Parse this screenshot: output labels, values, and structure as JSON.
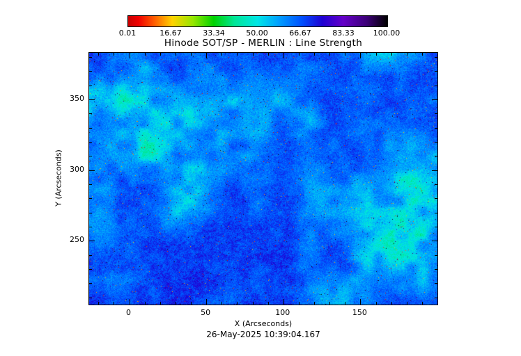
{
  "chart_data": {
    "type": "heatmap",
    "title": "Hinode SOT/SP - MERLIN : Line Strength",
    "xlabel": "X (Arcseconds)",
    "ylabel": "Y (Arcseconds)",
    "xlim": [
      -26,
      200
    ],
    "ylim": [
      205,
      383
    ],
    "xticks": [
      0,
      50,
      100,
      150
    ],
    "yticks": [
      250,
      300,
      350
    ],
    "x_minor_step": 10,
    "y_minor_step": 10,
    "grid": false,
    "colorbar": {
      "range": [
        0.01,
        100.0
      ],
      "tick_labels": [
        "0.01",
        "16.67",
        "33.34",
        "50.00",
        "66.67",
        "83.33",
        "100.00"
      ],
      "stops": [
        {
          "pos": 0.0,
          "color": "#c80000"
        },
        {
          "pos": 0.04,
          "color": "#f00000"
        },
        {
          "pos": 0.1,
          "color": "#ff5a00"
        },
        {
          "pos": 0.17,
          "color": "#ffd200"
        },
        {
          "pos": 0.25,
          "color": "#96e600"
        },
        {
          "pos": 0.33,
          "color": "#00d200"
        },
        {
          "pos": 0.41,
          "color": "#00e696"
        },
        {
          "pos": 0.5,
          "color": "#00e6e6"
        },
        {
          "pos": 0.58,
          "color": "#00a0ff"
        },
        {
          "pos": 0.67,
          "color": "#0050ff"
        },
        {
          "pos": 0.75,
          "color": "#1e00d2"
        },
        {
          "pos": 0.83,
          "color": "#6400c8"
        },
        {
          "pos": 0.92,
          "color": "#3c0078"
        },
        {
          "pos": 1.0,
          "color": "#000000"
        }
      ]
    },
    "description": "Solar photospheric line-strength map: predominantly dark-blue granular field (values ~65-75 on the 0.01-100 scale) with bright cyan magnetic-network patches (values ~45-55), a large cyan plage region at the right side, and sparse low-value red/orange and near-black speckles."
  },
  "footer": {
    "timestamp": "26-May-2025 10:39:04.167"
  }
}
